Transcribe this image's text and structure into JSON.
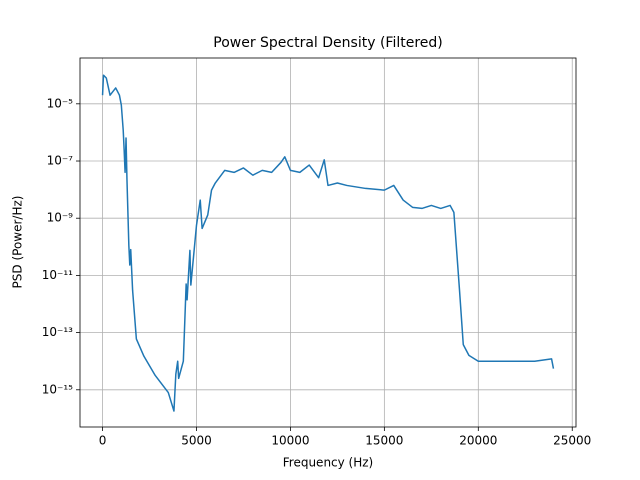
{
  "chart_data": {
    "type": "line",
    "title": "Power Spectral Density (Filtered)",
    "x_label": "Frequency (Hz)",
    "y_label": "PSD (Power/Hz)",
    "y_scale": "log",
    "grid": true,
    "xlim": [
      -1200,
      25200
    ],
    "xticks": [
      0,
      5000,
      10000,
      15000,
      20000,
      25000
    ],
    "ylim": [
      5e-17,
      0.0004
    ],
    "yticks": [
      {
        "value": 1e-05,
        "label": "10⁻⁵"
      },
      {
        "value": 1e-07,
        "label": "10⁻⁷"
      },
      {
        "value": 1e-09,
        "label": "10⁻⁹"
      },
      {
        "value": 1e-11,
        "label": "10⁻¹¹"
      },
      {
        "value": 1e-13,
        "label": "10⁻¹³"
      },
      {
        "value": 1e-15,
        "label": "10⁻¹⁵"
      }
    ],
    "x": [
      0,
      50,
      200,
      400,
      700,
      900,
      1000,
      1100,
      1150,
      1200,
      1250,
      1300,
      1400,
      1450,
      1500,
      1600,
      1800,
      2200,
      2800,
      3500,
      3800,
      3900,
      4000,
      4050,
      4300,
      4450,
      4500,
      4650,
      4700,
      5000,
      5200,
      5300,
      5600,
      5800,
      6000,
      6500,
      7000,
      7500,
      8000,
      8500,
      9000,
      9500,
      9700,
      10000,
      10500,
      11000,
      11500,
      11800,
      12000,
      12500,
      13000,
      14000,
      15000,
      15500,
      16000,
      16500,
      17000,
      17500,
      18000,
      18500,
      18700,
      19000,
      19200,
      19500,
      20000,
      21000,
      22000,
      23000,
      23900,
      24000
    ],
    "series": [
      {
        "name": "PSD",
        "color": "#1f77b4",
        "values": [
          2e-05,
          0.0001,
          8e-05,
          2e-05,
          3.6e-05,
          2e-05,
          9e-06,
          1.2e-06,
          2.4e-07,
          4e-08,
          6.4e-07,
          2.2e-08,
          1.1e-10,
          2.3e-11,
          8e-11,
          3e-12,
          6e-14,
          1.5e-14,
          3.2e-15,
          8e-16,
          1.8e-16,
          3.5e-15,
          1e-14,
          2.5e-15,
          1e-14,
          5e-12,
          1.4e-12,
          7.5e-11,
          4.6e-12,
          5.6e-10,
          4.3e-09,
          4.4e-10,
          1.3e-09,
          9.6e-09,
          1.7e-08,
          4.7e-08,
          4e-08,
          5.7e-08,
          3.2e-08,
          4.7e-08,
          4e-08,
          9e-08,
          1.4e-07,
          4.7e-08,
          4e-08,
          7.2e-08,
          2.6e-08,
          1.1e-07,
          1.4e-08,
          1.7e-08,
          1.4e-08,
          1.1e-08,
          9.6e-09,
          1.4e-08,
          4.3e-09,
          2.4e-09,
          2.2e-09,
          2.8e-09,
          2.2e-09,
          2.8e-09,
          1.6e-09,
          3e-12,
          3.8e-14,
          1.6e-14,
          1e-14,
          1e-14,
          1e-14,
          1e-14,
          1.2e-14,
          5.5e-15
        ]
      }
    ]
  }
}
